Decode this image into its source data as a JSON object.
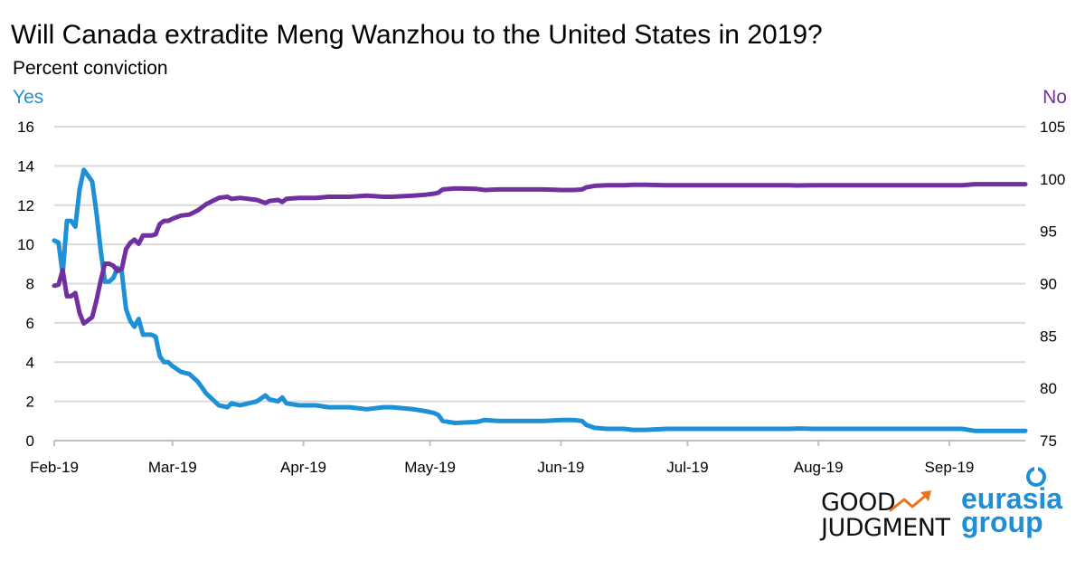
{
  "chart_data": {
    "type": "line",
    "title": "Will Canada extradite Meng Wanzhou to the United States in 2019?",
    "subtitle": "Percent conviction",
    "left_axis_label": "Yes",
    "right_axis_label": "No",
    "left_ylim": [
      0,
      16
    ],
    "left_ticks": [
      "0",
      "2",
      "4",
      "6",
      "8",
      "10",
      "12",
      "14",
      "16"
    ],
    "right_ylim": [
      75,
      105
    ],
    "right_ticks": [
      "75",
      "80",
      "85",
      "90",
      "95",
      "100",
      "105"
    ],
    "x_range_days": [
      0,
      230
    ],
    "x_ticks": [
      {
        "label": "Feb-19",
        "day": 0
      },
      {
        "label": "Mar-19",
        "day": 28
      },
      {
        "label": "Apr-19",
        "day": 59
      },
      {
        "label": "May-19",
        "day": 89
      },
      {
        "label": "Jun-19",
        "day": 120
      },
      {
        "label": "Jul-19",
        "day": 150
      },
      {
        "label": "Aug-19",
        "day": 181
      },
      {
        "label": "Sep-19",
        "day": 212
      }
    ],
    "grid": "horizontal",
    "series": [
      {
        "name": "Yes",
        "axis": "left",
        "color": "#1e90d6",
        "points": [
          [
            0,
            10.2
          ],
          [
            1,
            10.1
          ],
          [
            2,
            8.5
          ],
          [
            3,
            11.2
          ],
          [
            4,
            11.2
          ],
          [
            5,
            10.9
          ],
          [
            6,
            12.8
          ],
          [
            7,
            13.8
          ],
          [
            8,
            13.5
          ],
          [
            9,
            13.2
          ],
          [
            10,
            11.6
          ],
          [
            11,
            9.7
          ],
          [
            12,
            8.1
          ],
          [
            13,
            8.1
          ],
          [
            14,
            8.3
          ],
          [
            15,
            8.8
          ],
          [
            16,
            8.6
          ],
          [
            17,
            6.7
          ],
          [
            18,
            6.1
          ],
          [
            19,
            5.8
          ],
          [
            20,
            6.2
          ],
          [
            21,
            5.4
          ],
          [
            22,
            5.4
          ],
          [
            23,
            5.4
          ],
          [
            24,
            5.3
          ],
          [
            25,
            4.3
          ],
          [
            26,
            4.0
          ],
          [
            27,
            4.0
          ],
          [
            28,
            3.8
          ],
          [
            30,
            3.5
          ],
          [
            32,
            3.4
          ],
          [
            34,
            3.0
          ],
          [
            36,
            2.4
          ],
          [
            38,
            2.0
          ],
          [
            39,
            1.8
          ],
          [
            41,
            1.7
          ],
          [
            42,
            1.9
          ],
          [
            44,
            1.8
          ],
          [
            46,
            1.9
          ],
          [
            48,
            2.0
          ],
          [
            50,
            2.3
          ],
          [
            51,
            2.1
          ],
          [
            53,
            2.0
          ],
          [
            54,
            2.2
          ],
          [
            55,
            1.9
          ],
          [
            58,
            1.8
          ],
          [
            62,
            1.8
          ],
          [
            65,
            1.7
          ],
          [
            70,
            1.7
          ],
          [
            74,
            1.6
          ],
          [
            78,
            1.7
          ],
          [
            80,
            1.7
          ],
          [
            85,
            1.6
          ],
          [
            88,
            1.5
          ],
          [
            90,
            1.4
          ],
          [
            91,
            1.3
          ],
          [
            92,
            1.0
          ],
          [
            95,
            0.9
          ],
          [
            100,
            0.95
          ],
          [
            102,
            1.05
          ],
          [
            105,
            1.0
          ],
          [
            108,
            1.0
          ],
          [
            112,
            1.0
          ],
          [
            116,
            1.0
          ],
          [
            120,
            1.05
          ],
          [
            123,
            1.05
          ],
          [
            125,
            1.0
          ],
          [
            126,
            0.8
          ],
          [
            128,
            0.65
          ],
          [
            131,
            0.6
          ],
          [
            135,
            0.6
          ],
          [
            137,
            0.55
          ],
          [
            140,
            0.55
          ],
          [
            145,
            0.6
          ],
          [
            155,
            0.6
          ],
          [
            160,
            0.6
          ],
          [
            168,
            0.6
          ],
          [
            174,
            0.6
          ],
          [
            176,
            0.62
          ],
          [
            180,
            0.6
          ],
          [
            190,
            0.6
          ],
          [
            200,
            0.6
          ],
          [
            210,
            0.6
          ],
          [
            215,
            0.6
          ],
          [
            218,
            0.5
          ],
          [
            225,
            0.5
          ],
          [
            230,
            0.5
          ]
        ]
      },
      {
        "name": "No",
        "axis": "right",
        "color": "#7030a0",
        "points": [
          [
            0,
            89.8
          ],
          [
            1,
            89.9
          ],
          [
            2,
            91.3
          ],
          [
            3,
            88.8
          ],
          [
            4,
            88.8
          ],
          [
            5,
            89.1
          ],
          [
            6,
            87.2
          ],
          [
            7,
            86.2
          ],
          [
            8,
            86.5
          ],
          [
            9,
            86.8
          ],
          [
            10,
            88.4
          ],
          [
            11,
            90.3
          ],
          [
            12,
            91.9
          ],
          [
            13,
            91.9
          ],
          [
            14,
            91.7
          ],
          [
            15,
            91.2
          ],
          [
            16,
            91.4
          ],
          [
            17,
            93.3
          ],
          [
            18,
            93.9
          ],
          [
            19,
            94.2
          ],
          [
            20,
            93.8
          ],
          [
            21,
            94.6
          ],
          [
            22,
            94.6
          ],
          [
            23,
            94.6
          ],
          [
            24,
            94.7
          ],
          [
            25,
            95.7
          ],
          [
            26,
            96.0
          ],
          [
            27,
            96.0
          ],
          [
            28,
            96.2
          ],
          [
            30,
            96.5
          ],
          [
            32,
            96.6
          ],
          [
            34,
            97.0
          ],
          [
            36,
            97.6
          ],
          [
            38,
            98.0
          ],
          [
            39,
            98.2
          ],
          [
            41,
            98.3
          ],
          [
            42,
            98.1
          ],
          [
            44,
            98.2
          ],
          [
            46,
            98.1
          ],
          [
            48,
            98.0
          ],
          [
            50,
            97.7
          ],
          [
            51,
            97.9
          ],
          [
            53,
            98.0
          ],
          [
            54,
            97.8
          ],
          [
            55,
            98.1
          ],
          [
            58,
            98.2
          ],
          [
            62,
            98.2
          ],
          [
            65,
            98.3
          ],
          [
            70,
            98.3
          ],
          [
            74,
            98.4
          ],
          [
            78,
            98.3
          ],
          [
            80,
            98.3
          ],
          [
            85,
            98.4
          ],
          [
            88,
            98.5
          ],
          [
            90,
            98.6
          ],
          [
            91,
            98.7
          ],
          [
            92,
            99.0
          ],
          [
            95,
            99.1
          ],
          [
            100,
            99.05
          ],
          [
            102,
            98.95
          ],
          [
            105,
            99.0
          ],
          [
            108,
            99.0
          ],
          [
            112,
            99.0
          ],
          [
            116,
            99.0
          ],
          [
            120,
            98.95
          ],
          [
            123,
            98.95
          ],
          [
            125,
            99.0
          ],
          [
            126,
            99.2
          ],
          [
            128,
            99.35
          ],
          [
            131,
            99.4
          ],
          [
            135,
            99.4
          ],
          [
            137,
            99.45
          ],
          [
            140,
            99.45
          ],
          [
            145,
            99.4
          ],
          [
            155,
            99.4
          ],
          [
            160,
            99.4
          ],
          [
            168,
            99.4
          ],
          [
            174,
            99.4
          ],
          [
            176,
            99.38
          ],
          [
            180,
            99.4
          ],
          [
            190,
            99.4
          ],
          [
            200,
            99.4
          ],
          [
            210,
            99.4
          ],
          [
            215,
            99.4
          ],
          [
            218,
            99.5
          ],
          [
            225,
            99.5
          ],
          [
            230,
            99.5
          ]
        ]
      }
    ]
  },
  "logos": {
    "good_judgment": {
      "line1": "GOOD",
      "line2": "JUDGMENT",
      "arrow_color": "#e8731e"
    },
    "eurasia": {
      "line1": "eurasia",
      "line2": "group",
      "color": "#1e8fd6"
    }
  }
}
